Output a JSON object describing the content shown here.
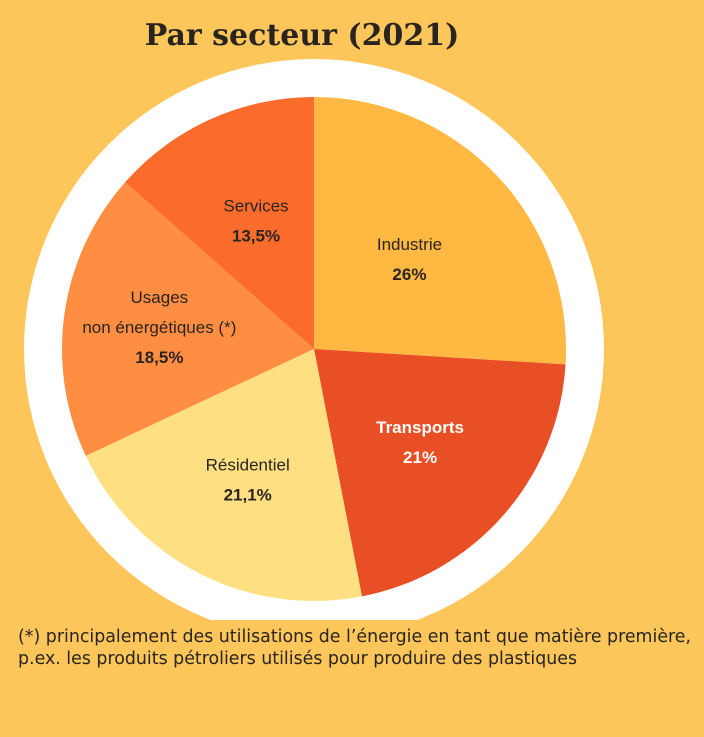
{
  "chart_data": {
    "type": "pie",
    "title": "Par secteur (2021)",
    "slices": [
      {
        "label": "Industrie",
        "value": 26,
        "value_label": "26%",
        "color": "#ffb942"
      },
      {
        "label": "Transports",
        "value": 21,
        "value_label": "21%",
        "color": "#e94f25"
      },
      {
        "label": "Résidentiel",
        "value": 21.1,
        "value_label": "21,1%",
        "color": "#fee083"
      },
      {
        "label": "Usages non énergétiques (*)",
        "lines": [
          "Usages",
          "non énergétiques (*)"
        ],
        "value": 18.5,
        "value_label": "18,5%",
        "color": "#ff8e42"
      },
      {
        "label": "Services",
        "value": 13.5,
        "value_label": "13,5%",
        "color": "#fb6c2c"
      }
    ],
    "background_color": "#fdc65a",
    "rim_color": "#ffffff"
  },
  "footnote": "(*) principalement des utilisations de l’énergie en tant que matière première, p.ex. les produits pétroliers utilisés pour produire des plastiques"
}
